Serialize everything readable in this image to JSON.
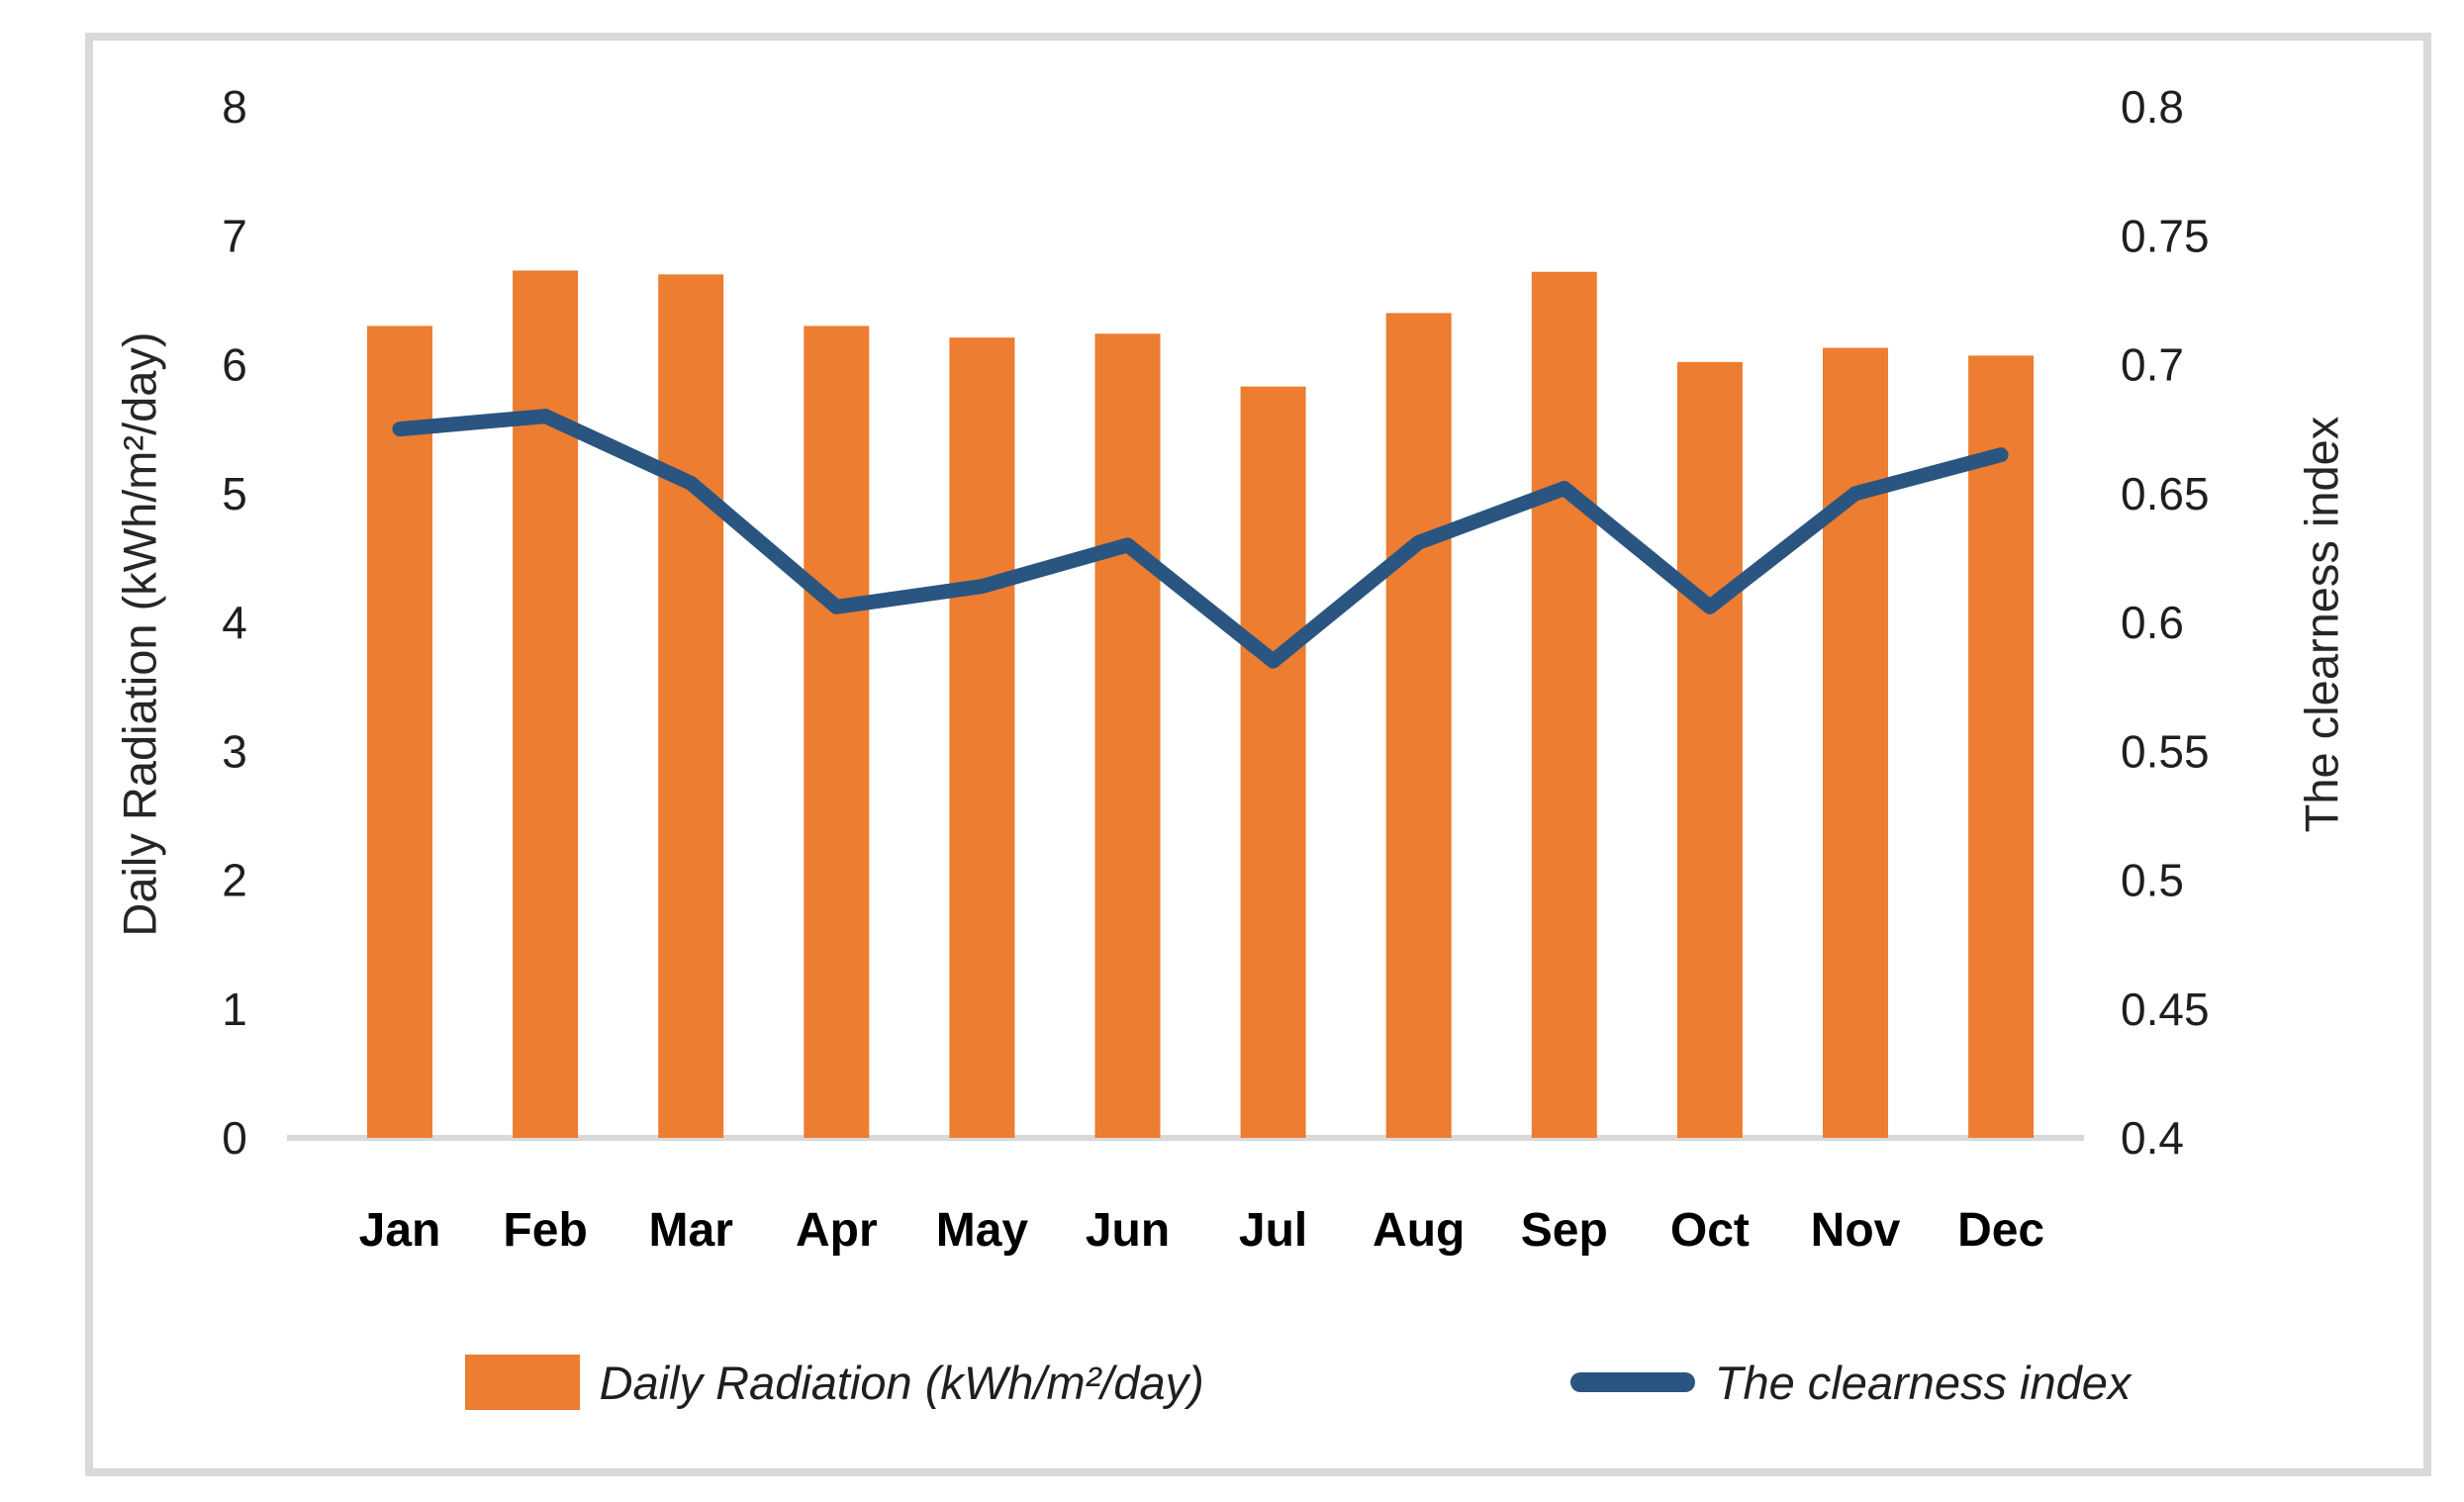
{
  "chart_data": {
    "type": "combo-bar-line",
    "title": "",
    "categories": [
      "Jan",
      "Feb",
      "Mar",
      "Apr",
      "May",
      "Jun",
      "Jul",
      "Aug",
      "Sep",
      "Oct",
      "Nov",
      "Dec"
    ],
    "series": [
      {
        "name": "Daily Radiation (kWh/m²/day)",
        "type": "bar",
        "axis": "left",
        "color": "#ED7D31",
        "values": [
          6.3,
          6.73,
          6.7,
          6.3,
          6.21,
          6.24,
          5.83,
          6.4,
          6.72,
          6.02,
          6.13,
          6.07
        ]
      },
      {
        "name": "The clearness index",
        "type": "line",
        "axis": "right",
        "color": "#2A5580",
        "values": [
          0.675,
          0.68,
          0.654,
          0.606,
          0.614,
          0.63,
          0.585,
          0.631,
          0.652,
          0.606,
          0.65,
          0.665
        ]
      }
    ],
    "left_axis": {
      "label": "Daily Radiation (kWh/m²/day)",
      "min": 0,
      "max": 8,
      "step": 1,
      "tick_labels": [
        "8",
        "7",
        "6",
        "5",
        "4",
        "3",
        "2",
        "1",
        "0"
      ]
    },
    "right_axis": {
      "label": "The clearness index",
      "min": 0.4,
      "max": 0.8,
      "step": 0.05,
      "tick_labels": [
        "0.8",
        "0.75",
        "0.7",
        "0.65",
        "0.6",
        "0.55",
        "0.5",
        "0.45",
        "0.4"
      ]
    },
    "legend": {
      "position": "bottom",
      "items": [
        {
          "label": "Daily Radiation (kWh/m²/day)",
          "marker": "bar",
          "color": "#ED7D31"
        },
        {
          "label": "The clearness index",
          "marker": "line",
          "color": "#2A5580"
        }
      ]
    },
    "grid": "off",
    "frame_border_color": "#D9D9D9",
    "axis_line_color": "#D9D9D9",
    "tick_text_color": "#1f1f1f",
    "category_text_color": "#000000"
  }
}
